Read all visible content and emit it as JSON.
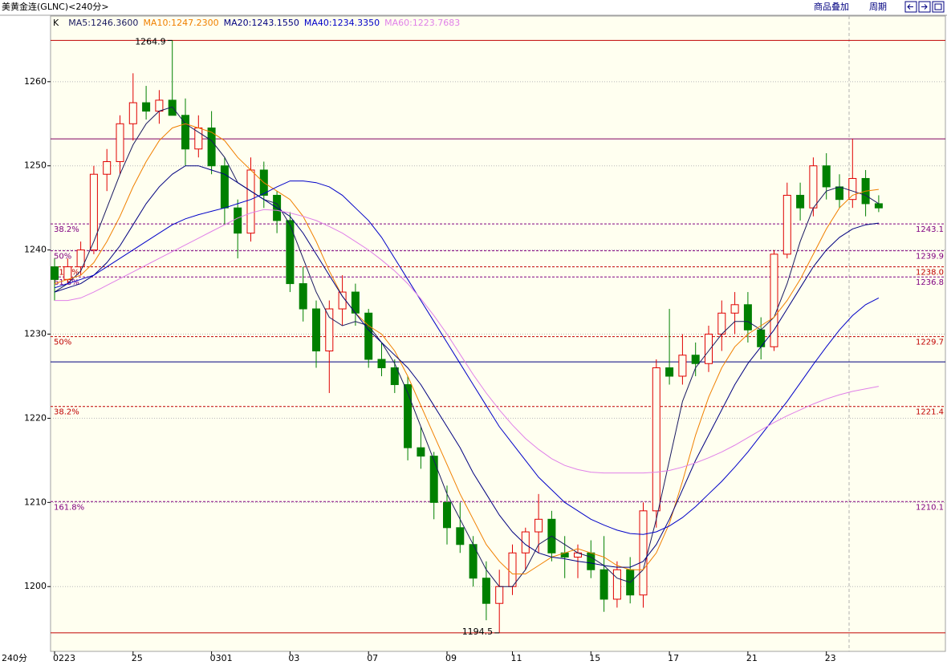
{
  "chart_data": {
    "type": "candlestick",
    "title": "美黄金连(GLNC)<240分>",
    "period_label": "240分",
    "buttons": [
      "商品叠加",
      "周期"
    ],
    "categories": [
      "0223",
      null,
      null,
      null,
      null,
      null,
      "25",
      null,
      null,
      null,
      null,
      null,
      "0301",
      null,
      null,
      null,
      null,
      null,
      "03",
      null,
      null,
      null,
      null,
      null,
      "07",
      null,
      null,
      null,
      null,
      null,
      "09",
      null,
      null,
      null,
      null,
      "11",
      null,
      null,
      null,
      null,
      null,
      "15",
      null,
      null,
      null,
      null,
      null,
      "17",
      null,
      null,
      null,
      null,
      null,
      "21",
      null,
      null,
      null,
      null,
      null,
      "23",
      null,
      null,
      null,
      null
    ],
    "candles": {
      "name": "K",
      "up_color": "#e00000",
      "down_color": "#008000",
      "open": [
        1238,
        1236.5,
        1238,
        1240,
        1249,
        1250.5,
        1255,
        1257.5,
        1256.5,
        1257.8,
        1256,
        1252,
        1254.5,
        1250,
        1245,
        1242,
        1249.5,
        1246.5,
        1243.5,
        1236,
        1233,
        1228,
        1233,
        1235,
        1232.5,
        1227,
        1226,
        1224,
        1216.5,
        1215.5,
        1210,
        1207,
        1205,
        1201,
        1198,
        1200,
        1204,
        1206.5,
        1208,
        1204,
        1203.5,
        1204,
        1202,
        1198.5,
        1202,
        1199,
        1209,
        1226,
        1225,
        1227.5,
        1226.5,
        1230,
        1232.5,
        1233.5,
        1230.5,
        1228.5,
        1239.5,
        1246.5,
        1245,
        1250,
        1247.5,
        1246,
        1248.5,
        1245.5
      ],
      "high": [
        1239,
        1239,
        1241,
        1250,
        1252,
        1256,
        1261,
        1259.5,
        1259,
        1264.9,
        1258,
        1256,
        1256.5,
        1251,
        1246,
        1251,
        1250.5,
        1247,
        1244.5,
        1238,
        1234,
        1234,
        1237,
        1236,
        1233,
        1229,
        1227,
        1225,
        1219,
        1216,
        1212,
        1210,
        1206,
        1203,
        1202,
        1205,
        1207,
        1211,
        1209,
        1206,
        1205,
        1205.5,
        1206,
        1203,
        1203.5,
        1210,
        1227,
        1233,
        1230,
        1229,
        1231,
        1234,
        1235,
        1235,
        1232,
        1240,
        1248,
        1248,
        1251,
        1251.5,
        1249,
        1253.2,
        1249.5,
        1246.5
      ],
      "low": [
        1234,
        1236,
        1237,
        1239.5,
        1247,
        1249,
        1253,
        1255.5,
        1255,
        1256,
        1250,
        1251,
        1249,
        1243,
        1239,
        1241,
        1245,
        1242,
        1235,
        1231.5,
        1226,
        1223,
        1231,
        1231,
        1226,
        1225,
        1223,
        1215,
        1214,
        1208,
        1205,
        1204,
        1200,
        1196,
        1194.5,
        1199,
        1202,
        1204,
        1203,
        1201,
        1201,
        1201,
        1197,
        1197.5,
        1198,
        1197.5,
        1207,
        1224,
        1224,
        1225,
        1225.5,
        1228,
        1230,
        1229,
        1227,
        1228,
        1239,
        1243.5,
        1244,
        1246,
        1245,
        1245,
        1244,
        1244.5
      ],
      "close": [
        1236.5,
        1238,
        1240,
        1249,
        1250.5,
        1255,
        1257.5,
        1256.5,
        1257.8,
        1256,
        1252,
        1254.5,
        1250,
        1245,
        1242,
        1249.5,
        1246.5,
        1243.5,
        1236,
        1233,
        1228,
        1233,
        1235,
        1232.5,
        1227,
        1226,
        1224,
        1216.5,
        1215.5,
        1210,
        1207,
        1205,
        1201,
        1198,
        1200,
        1204,
        1206.5,
        1208,
        1204,
        1203.5,
        1204,
        1202,
        1198.5,
        1202,
        1199,
        1209,
        1226,
        1225,
        1227.5,
        1226.5,
        1230,
        1232.5,
        1233.5,
        1230.5,
        1228.5,
        1239.5,
        1246.5,
        1245,
        1250,
        1247.5,
        1246,
        1248.5,
        1245.5,
        1245
      ]
    },
    "series": [
      {
        "name": "MA5:1246.3600",
        "color": "#1a1a60",
        "values": [
          1235,
          1236,
          1237.5,
          1241,
          1245,
          1249,
          1252.5,
          1255,
          1256.5,
          1257,
          1255,
          1254,
          1253,
          1251,
          1248,
          1247,
          1246,
          1245.5,
          1243,
          1239,
          1235,
          1232,
          1231,
          1231.5,
          1231,
          1229,
          1226.5,
          1223,
          1219,
          1215,
          1211,
          1208,
          1205,
          1202,
          1200,
          1200,
          1202,
          1205,
          1206,
          1205,
          1204,
          1203.5,
          1202.5,
          1201,
          1200.5,
          1202,
          1208,
          1215,
          1222,
          1226,
          1228,
          1230,
          1231.5,
          1231.5,
          1230.5,
          1232,
          1236,
          1241,
          1245,
          1247,
          1247.5,
          1247,
          1246.5,
          1245.5
        ]
      },
      {
        "name": "MA10:1247.2300",
        "color": "#f08000",
        "values": [
          1236,
          1236.5,
          1237,
          1238.5,
          1241,
          1244,
          1247.5,
          1250.5,
          1253,
          1254.5,
          1255,
          1254.5,
          1254,
          1253,
          1251,
          1249.5,
          1248,
          1247,
          1246,
          1244,
          1241,
          1237.5,
          1234.5,
          1232.5,
          1231,
          1230,
          1228,
          1225,
          1221.5,
          1218,
          1214.5,
          1211,
          1208,
          1205,
          1203,
          1201.5,
          1201.5,
          1202.5,
          1203.5,
          1204,
          1204.5,
          1204,
          1203.5,
          1202.5,
          1202,
          1202,
          1204,
          1207.5,
          1212.5,
          1218,
          1222.5,
          1226,
          1228.5,
          1230,
          1231,
          1232,
          1234,
          1236.5,
          1239.5,
          1242.5,
          1245,
          1246.5,
          1247,
          1247.2
        ]
      },
      {
        "name": "MA20:1243.1550",
        "color": "#000080",
        "values": [
          1235,
          1235.5,
          1236,
          1237,
          1238.5,
          1240.5,
          1243,
          1245.5,
          1247.5,
          1249,
          1250,
          1250,
          1249.5,
          1249,
          1248,
          1247,
          1246,
          1245,
          1244,
          1242,
          1239.5,
          1237,
          1234.5,
          1232.5,
          1230.5,
          1229,
          1227.5,
          1226,
          1224,
          1221.5,
          1219,
          1216.5,
          1213.5,
          1211,
          1208.5,
          1206.5,
          1205,
          1204,
          1203.5,
          1203.3,
          1203,
          1202.8,
          1202.5,
          1202.3,
          1202.3,
          1203,
          1205,
          1208,
          1211.5,
          1215,
          1218,
          1221,
          1224,
          1226.5,
          1228.5,
          1230.5,
          1233,
          1235.5,
          1238,
          1240,
          1241.5,
          1242.5,
          1243,
          1243.2
        ]
      },
      {
        "name": "MA40:1234.3350",
        "color": "#0000c8",
        "values": [
          1235.5,
          1236,
          1236.5,
          1237,
          1238,
          1239,
          1240,
          1241,
          1242,
          1243,
          1243.7,
          1244.2,
          1244.6,
          1245,
          1245.5,
          1246,
          1246.7,
          1247.5,
          1248.2,
          1248.2,
          1248,
          1247.5,
          1246.5,
          1245,
          1243.5,
          1241.5,
          1239,
          1236.5,
          1234,
          1231.5,
          1229,
          1226.5,
          1224,
          1221.5,
          1219,
          1217,
          1215,
          1213,
          1211.5,
          1210,
          1209,
          1208,
          1207.3,
          1206.7,
          1206.3,
          1206.2,
          1206.5,
          1207.2,
          1208.2,
          1209.5,
          1211,
          1212.5,
          1214.2,
          1216,
          1218,
          1220,
          1222,
          1224.2,
          1226.4,
          1228.5,
          1230.5,
          1232.2,
          1233.5,
          1234.3
        ]
      },
      {
        "name": "MA60:1223.7683",
        "color": "#e080e8",
        "values": [
          1234,
          1234,
          1234.3,
          1235,
          1235.8,
          1236.6,
          1237.4,
          1238.2,
          1239,
          1239.8,
          1240.6,
          1241.4,
          1242.2,
          1243,
          1243.8,
          1244.4,
          1244.8,
          1244.7,
          1244.4,
          1244,
          1243.5,
          1242.8,
          1242,
          1241,
          1240,
          1238.8,
          1237.5,
          1236,
          1234.2,
          1232.2,
          1230,
          1227.6,
          1225.2,
          1223,
          1221,
          1219.2,
          1217.6,
          1216.3,
          1215.2,
          1214.4,
          1213.9,
          1213.6,
          1213.5,
          1213.5,
          1213.5,
          1213.5,
          1213.6,
          1213.8,
          1214.2,
          1214.7,
          1215.3,
          1216,
          1216.8,
          1217.7,
          1218.6,
          1219.5,
          1220.3,
          1221,
          1221.7,
          1222.3,
          1222.8,
          1223.2,
          1223.5,
          1223.8
        ]
      }
    ],
    "extreme_labels": [
      1264.9,
      1194.5
    ],
    "hlines": [
      {
        "value": 1264.9,
        "color": "#c00000"
      },
      {
        "value": 1253.2,
        "color": "#800060"
      },
      {
        "value": 1226.7,
        "color": "#000080"
      },
      {
        "value": 1194.5,
        "color": "#c00000"
      }
    ],
    "fib_lines": [
      {
        "value": 1243.1,
        "label": "1243.1",
        "pct": "38.2%",
        "color": "#800080"
      },
      {
        "value": 1239.9,
        "label": "1239.9",
        "pct": "50%",
        "color": "#800080"
      },
      {
        "value": 1238.0,
        "label": "1238.0",
        "pct": "61.8%",
        "color": "#c00000"
      },
      {
        "value": 1236.8,
        "label": "1236.8",
        "pct": "61.8%",
        "color": "#800080"
      },
      {
        "value": 1229.7,
        "label": "1229.7",
        "pct": "50%",
        "color": "#c00000"
      },
      {
        "value": 1221.4,
        "label": "1221.4",
        "pct": "38.2%",
        "color": "#c00000"
      },
      {
        "value": 1210.1,
        "label": "1210.1",
        "pct": "161.8%",
        "color": "#800080"
      }
    ],
    "ylim": [
      1192.3,
      1267.8
    ],
    "yticks": [
      1200,
      1210,
      1220,
      1230,
      1240,
      1250,
      1260
    ],
    "grid": true
  }
}
